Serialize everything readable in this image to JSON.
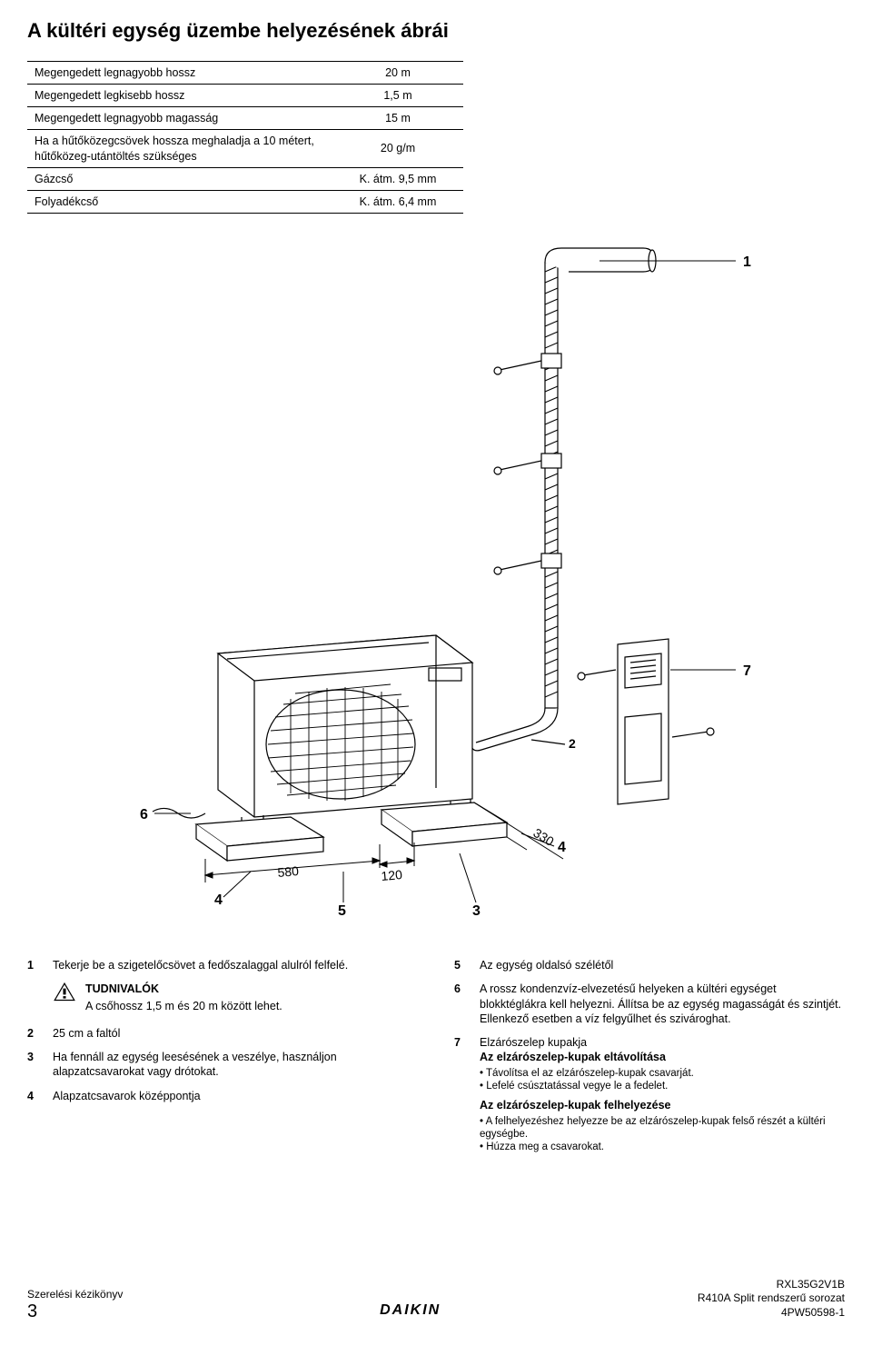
{
  "title": "A kültéri egység üzembe helyezésének ábrái",
  "spec_table": {
    "rows": [
      {
        "label": "Megengedett legnagyobb hossz",
        "value": "20 m"
      },
      {
        "label": "Megengedett legkisebb hossz",
        "value": "1,5 m"
      },
      {
        "label": "Megengedett legnagyobb magasság",
        "value": "15 m"
      },
      {
        "label": "Ha a hűtőközegcsövek hossza meghaladja a 10 métert, hűtőközeg-utántöltés szükséges",
        "value": "20 g/m"
      },
      {
        "label": "Gázcső",
        "value": "K. átm. 9,5 mm"
      },
      {
        "label": "Folyadékcső",
        "value": "K. átm. 6,4 mm"
      }
    ]
  },
  "diagram": {
    "callouts": {
      "c1": "1",
      "c2": "2",
      "c3": "3",
      "c4a": "4",
      "c4b": "4",
      "c5": "5",
      "c6": "6",
      "c7": "7"
    },
    "dims": {
      "d580": "580",
      "d120": "120",
      "d330": "330"
    },
    "stroke": "#000000",
    "fill": "#ffffff"
  },
  "legend_left": [
    {
      "n": "1",
      "text": "Tekerje be a szigetelőcsövet a fedőszalaggal alulról felfelé."
    }
  ],
  "note": {
    "title": "TUDNIVALÓK",
    "body": "A csőhossz 1,5 m és 20 m között lehet."
  },
  "legend_left2": [
    {
      "n": "2",
      "text": "25 cm a faltól"
    },
    {
      "n": "3",
      "text": "Ha fennáll az egység leesésének a veszélye, használjon alapzatcsavarokat vagy drótokat."
    },
    {
      "n": "4",
      "text": "Alapzatcsavarok középpontja"
    }
  ],
  "legend_right": [
    {
      "n": "5",
      "text": "Az egység oldalsó szélétől"
    },
    {
      "n": "6",
      "text": "A rossz kondenzvíz-elvezetésű helyeken a kültéri egységet blokktéglákra kell helyezni. Állítsa be az egység magasságát és szintjét. Ellenkező esetben a víz felgyűlhet és szivároghat."
    }
  ],
  "legend7": {
    "n": "7",
    "intro": "Elzárószelep kupakja",
    "sub1_title": "Az elzárószelep-kupak eltávolítása",
    "sub1_items": [
      "Távolítsa el az elzárószelep-kupak csavarját.",
      "Lefelé csúsztatással vegye le a fedelet."
    ],
    "sub2_title": "Az elzárószelep-kupak felhelyezése",
    "sub2_items": [
      "A felhelyezéshez helyezze be az elzárószelep-kupak felső részét a kültéri egységbe.",
      "Húzza meg a csavarokat."
    ]
  },
  "footer": {
    "left1": "Szerelési kézikönyv",
    "pagenum": "3",
    "brand": "DAIKIN",
    "right1": "RXL35G2V1B",
    "right2": "R410A Split rendszerű sorozat",
    "right3": "4PW50598-1"
  }
}
